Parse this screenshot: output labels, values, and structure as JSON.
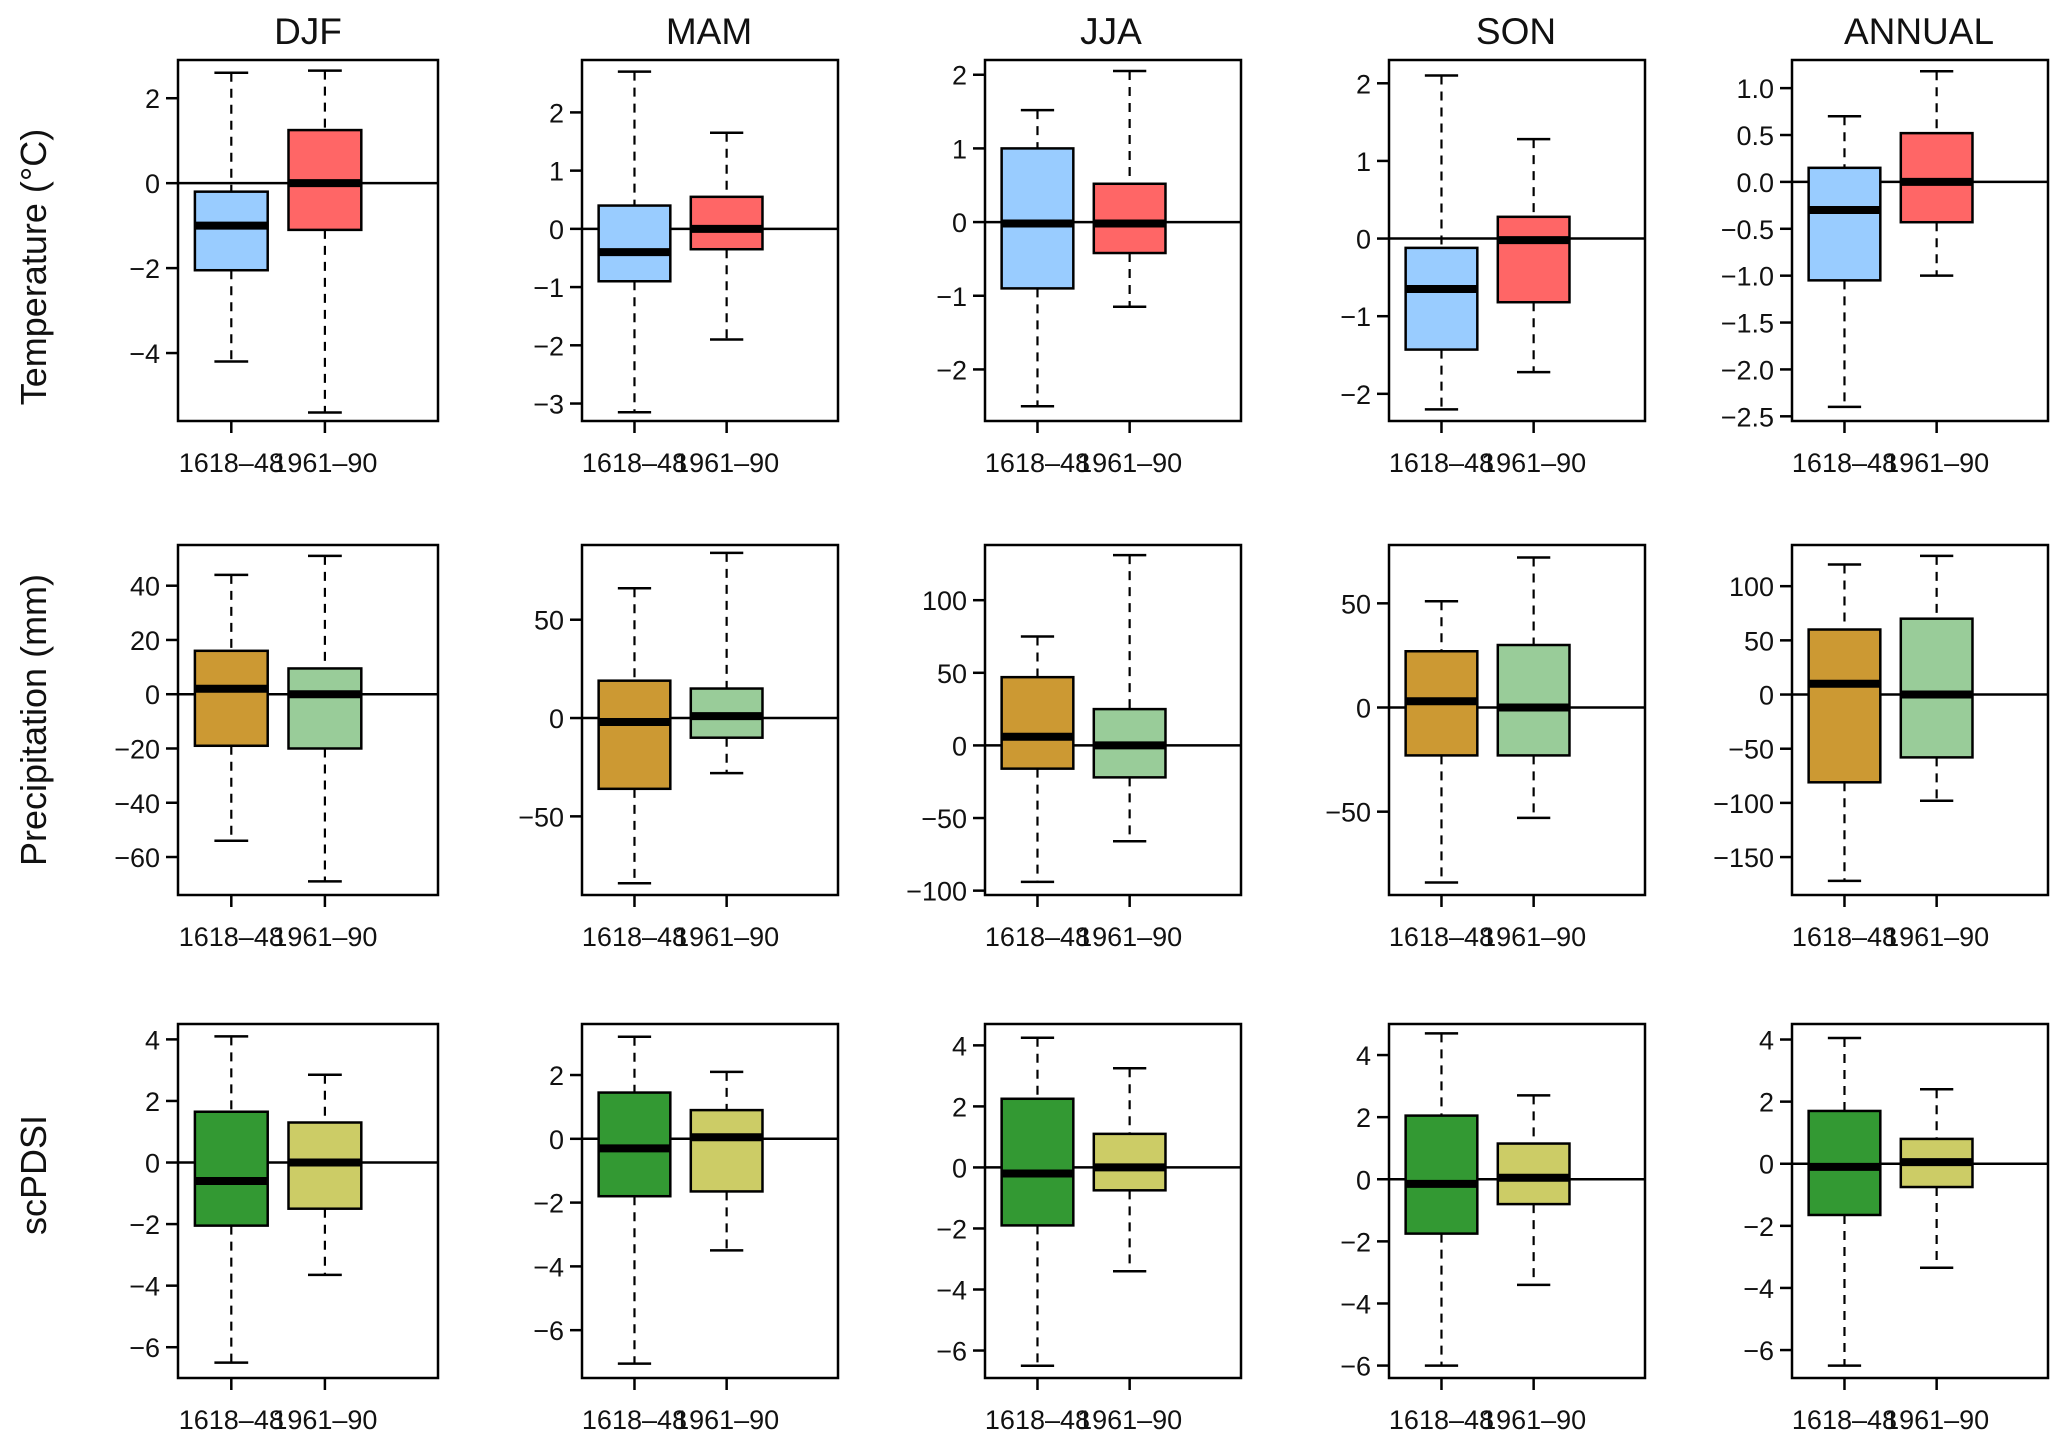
{
  "columns": [
    "DJF",
    "MAM",
    "JJA",
    "SON",
    "ANNUAL"
  ],
  "rows": [
    "Temperature (°C)",
    "Precipitation (mm)",
    "scPDSI"
  ],
  "colors": {
    "temp_1618": "#99CCFF",
    "temp_1961": "#FF6666",
    "precip_1618": "#CC9933",
    "precip_1961": "#99CC99",
    "pdsi_1618": "#339933",
    "pdsi_1961": "#CCCC66"
  },
  "chart_data": [
    {
      "type": "box",
      "row": "Temperature (°C)",
      "column": "DJF",
      "categories": [
        "1618–48",
        "1961–90"
      ],
      "ylim": [
        -5.6,
        2.9
      ],
      "yticks": [
        2,
        0,
        -2,
        -4
      ],
      "tick_labels": [
        "2",
        "0",
        "−2",
        "−4"
      ],
      "reference_line": 0,
      "boxes": [
        {
          "category": "1618–48",
          "whisker_low": -4.2,
          "q1": -2.05,
          "median": -1.0,
          "q3": -0.2,
          "whisker_high": 2.6,
          "color": "#99CCFF"
        },
        {
          "category": "1961–90",
          "whisker_low": -5.4,
          "q1": -1.1,
          "median": 0.0,
          "q3": 1.25,
          "whisker_high": 2.65,
          "color": "#FF6666"
        }
      ]
    },
    {
      "type": "box",
      "row": "Temperature (°C)",
      "column": "MAM",
      "categories": [
        "1618–48",
        "1961–90"
      ],
      "ylim": [
        -3.3,
        2.9
      ],
      "yticks": [
        2,
        1,
        0,
        -1,
        -2,
        -3
      ],
      "tick_labels": [
        "2",
        "1",
        "0",
        "−1",
        "−2",
        "−3"
      ],
      "reference_line": 0,
      "boxes": [
        {
          "category": "1618–48",
          "whisker_low": -3.15,
          "q1": -0.9,
          "median": -0.4,
          "q3": 0.4,
          "whisker_high": 2.7,
          "color": "#99CCFF"
        },
        {
          "category": "1961–90",
          "whisker_low": -1.9,
          "q1": -0.35,
          "median": 0.0,
          "q3": 0.55,
          "whisker_high": 1.65,
          "color": "#FF6666"
        }
      ]
    },
    {
      "type": "box",
      "row": "Temperature (°C)",
      "column": "JJA",
      "categories": [
        "1618–48",
        "1961–90"
      ],
      "ylim": [
        -2.7,
        2.2
      ],
      "yticks": [
        2,
        1,
        0,
        -1,
        -2
      ],
      "tick_labels": [
        "2",
        "1",
        "0",
        "−1",
        "−2"
      ],
      "reference_line": 0,
      "boxes": [
        {
          "category": "1618–48",
          "whisker_low": -2.5,
          "q1": -0.9,
          "median": -0.02,
          "q3": 1.0,
          "whisker_high": 1.52,
          "color": "#99CCFF"
        },
        {
          "category": "1961–90",
          "whisker_low": -1.15,
          "q1": -0.42,
          "median": -0.02,
          "q3": 0.52,
          "whisker_high": 2.05,
          "color": "#FF6666"
        }
      ]
    },
    {
      "type": "box",
      "row": "Temperature (°C)",
      "column": "SON",
      "categories": [
        "1618–48",
        "1961–90"
      ],
      "ylim": [
        -2.35,
        2.3
      ],
      "yticks": [
        2,
        1,
        0,
        -1,
        -2
      ],
      "tick_labels": [
        "2",
        "1",
        "0",
        "−1",
        "−2"
      ],
      "reference_line": 0,
      "boxes": [
        {
          "category": "1618–48",
          "whisker_low": -2.2,
          "q1": -1.43,
          "median": -0.65,
          "q3": -0.12,
          "whisker_high": 2.1,
          "color": "#99CCFF"
        },
        {
          "category": "1961–90",
          "whisker_low": -1.72,
          "q1": -0.82,
          "median": -0.02,
          "q3": 0.28,
          "whisker_high": 1.28,
          "color": "#FF6666"
        }
      ]
    },
    {
      "type": "box",
      "row": "Temperature (°C)",
      "column": "ANNUAL",
      "categories": [
        "1618–48",
        "1961–90"
      ],
      "ylim": [
        -2.55,
        1.3
      ],
      "yticks": [
        1.0,
        0.5,
        0.0,
        -0.5,
        -1.0,
        -1.5,
        -2.0,
        -2.5
      ],
      "tick_labels": [
        "1.0",
        "0.5",
        "0.0",
        "−0.5",
        "−1.0",
        "−1.5",
        "−2.0",
        "−2.5"
      ],
      "reference_line": 0,
      "boxes": [
        {
          "category": "1618–48",
          "whisker_low": -2.4,
          "q1": -1.05,
          "median": -0.3,
          "q3": 0.15,
          "whisker_high": 0.7,
          "color": "#99CCFF"
        },
        {
          "category": "1961–90",
          "whisker_low": -1.0,
          "q1": -0.43,
          "median": 0.0,
          "q3": 0.52,
          "whisker_high": 1.18,
          "color": "#FF6666"
        }
      ]
    },
    {
      "type": "box",
      "row": "Precipitation (mm)",
      "column": "DJF",
      "categories": [
        "1618–48",
        "1961–90"
      ],
      "ylim": [
        -74,
        55
      ],
      "yticks": [
        40,
        20,
        0,
        -20,
        -40,
        -60
      ],
      "tick_labels": [
        "40",
        "20",
        "0",
        "−20",
        "−40",
        "−60"
      ],
      "reference_line": 0,
      "boxes": [
        {
          "category": "1618–48",
          "whisker_low": -54,
          "q1": -19,
          "median": 2,
          "q3": 16,
          "whisker_high": 44,
          "color": "#CC9933"
        },
        {
          "category": "1961–90",
          "whisker_low": -69,
          "q1": -20,
          "median": 0,
          "q3": 9.5,
          "whisker_high": 51,
          "color": "#99CC99"
        }
      ]
    },
    {
      "type": "box",
      "row": "Precipitation (mm)",
      "column": "MAM",
      "categories": [
        "1618–48",
        "1961–90"
      ],
      "ylim": [
        -90,
        88
      ],
      "yticks": [
        50,
        0,
        -50
      ],
      "tick_labels": [
        "50",
        "0",
        "−50"
      ],
      "reference_line": 0,
      "boxes": [
        {
          "category": "1618–48",
          "whisker_low": -84,
          "q1": -36,
          "median": -2,
          "q3": 19,
          "whisker_high": 66,
          "color": "#CC9933"
        },
        {
          "category": "1961–90",
          "whisker_low": -28,
          "q1": -10,
          "median": 1,
          "q3": 15,
          "whisker_high": 84,
          "color": "#99CC99"
        }
      ]
    },
    {
      "type": "box",
      "row": "Precipitation (mm)",
      "column": "JJA",
      "categories": [
        "1618–48",
        "1961–90"
      ],
      "ylim": [
        -103,
        138
      ],
      "yticks": [
        100,
        50,
        0,
        -50,
        -100
      ],
      "tick_labels": [
        "100",
        "50",
        "0",
        "−50",
        "−100"
      ],
      "reference_line": 0,
      "boxes": [
        {
          "category": "1618–48",
          "whisker_low": -94,
          "q1": -16,
          "median": 6,
          "q3": 47,
          "whisker_high": 75,
          "color": "#CC9933"
        },
        {
          "category": "1961–90",
          "whisker_low": -66,
          "q1": -22,
          "median": 0,
          "q3": 25,
          "whisker_high": 131,
          "color": "#99CC99"
        }
      ]
    },
    {
      "type": "box",
      "row": "Precipitation (mm)",
      "column": "SON",
      "categories": [
        "1618–48",
        "1961–90"
      ],
      "ylim": [
        -90,
        78
      ],
      "yticks": [
        50,
        0,
        -50
      ],
      "tick_labels": [
        "50",
        "0",
        "−50"
      ],
      "reference_line": 0,
      "boxes": [
        {
          "category": "1618–48",
          "whisker_low": -84,
          "q1": -23,
          "median": 3,
          "q3": 27,
          "whisker_high": 51,
          "color": "#CC9933"
        },
        {
          "category": "1961–90",
          "whisker_low": -53,
          "q1": -23,
          "median": 0,
          "q3": 30,
          "whisker_high": 72,
          "color": "#99CC99"
        }
      ]
    },
    {
      "type": "box",
      "row": "Precipitation (mm)",
      "column": "ANNUAL",
      "categories": [
        "1618–48",
        "1961–90"
      ],
      "ylim": [
        -185,
        138
      ],
      "yticks": [
        100,
        50,
        0,
        -50,
        -100,
        -150
      ],
      "tick_labels": [
        "100",
        "50",
        "0",
        "−50",
        "−100",
        "−150"
      ],
      "reference_line": 0,
      "boxes": [
        {
          "category": "1618–48",
          "whisker_low": -172,
          "q1": -81,
          "median": 10,
          "q3": 60,
          "whisker_high": 120,
          "color": "#CC9933"
        },
        {
          "category": "1961–90",
          "whisker_low": -98,
          "q1": -58,
          "median": 0,
          "q3": 70,
          "whisker_high": 128,
          "color": "#99CC99"
        }
      ]
    },
    {
      "type": "box",
      "row": "scPDSI",
      "column": "DJF",
      "categories": [
        "1618–48",
        "1961–90"
      ],
      "ylim": [
        -7.0,
        4.5
      ],
      "yticks": [
        4,
        2,
        0,
        -2,
        -4,
        -6
      ],
      "tick_labels": [
        "4",
        "2",
        "0",
        "−2",
        "−4",
        "−6"
      ],
      "reference_line": 0,
      "boxes": [
        {
          "category": "1618–48",
          "whisker_low": -6.5,
          "q1": -2.05,
          "median": -0.6,
          "q3": 1.65,
          "whisker_high": 4.1,
          "color": "#339933"
        },
        {
          "category": "1961–90",
          "whisker_low": -3.65,
          "q1": -1.5,
          "median": 0.0,
          "q3": 1.3,
          "whisker_high": 2.85,
          "color": "#CCCC66"
        }
      ]
    },
    {
      "type": "box",
      "row": "scPDSI",
      "column": "MAM",
      "categories": [
        "1618–48",
        "1961–90"
      ],
      "ylim": [
        -7.5,
        3.6
      ],
      "yticks": [
        2,
        0,
        -2,
        -4,
        -6
      ],
      "tick_labels": [
        "2",
        "0",
        "−2",
        "−4",
        "−6"
      ],
      "reference_line": 0,
      "boxes": [
        {
          "category": "1618–48",
          "whisker_low": -7.05,
          "q1": -1.8,
          "median": -0.3,
          "q3": 1.45,
          "whisker_high": 3.2,
          "color": "#339933"
        },
        {
          "category": "1961–90",
          "whisker_low": -3.5,
          "q1": -1.65,
          "median": 0.05,
          "q3": 0.9,
          "whisker_high": 2.1,
          "color": "#CCCC66"
        }
      ]
    },
    {
      "type": "box",
      "row": "scPDSI",
      "column": "JJA",
      "categories": [
        "1618–48",
        "1961–90"
      ],
      "ylim": [
        -6.9,
        4.7
      ],
      "yticks": [
        4,
        2,
        0,
        -2,
        -4,
        -6
      ],
      "tick_labels": [
        "4",
        "2",
        "0",
        "−2",
        "−4",
        "−6"
      ],
      "reference_line": 0,
      "boxes": [
        {
          "category": "1618–48",
          "whisker_low": -6.5,
          "q1": -1.9,
          "median": -0.2,
          "q3": 2.25,
          "whisker_high": 4.25,
          "color": "#339933"
        },
        {
          "category": "1961–90",
          "whisker_low": -3.4,
          "q1": -0.75,
          "median": 0.0,
          "q3": 1.1,
          "whisker_high": 3.25,
          "color": "#CCCC66"
        }
      ]
    },
    {
      "type": "box",
      "row": "scPDSI",
      "column": "SON",
      "categories": [
        "1618–48",
        "1961–90"
      ],
      "ylim": [
        -6.4,
        5.0
      ],
      "yticks": [
        4,
        2,
        0,
        -2,
        -4,
        -6
      ],
      "tick_labels": [
        "4",
        "2",
        "0",
        "−2",
        "−4",
        "−6"
      ],
      "reference_line": 0,
      "boxes": [
        {
          "category": "1618–48",
          "whisker_low": -6.0,
          "q1": -1.75,
          "median": -0.15,
          "q3": 2.05,
          "whisker_high": 4.7,
          "color": "#339933"
        },
        {
          "category": "1961–90",
          "whisker_low": -3.4,
          "q1": -0.8,
          "median": 0.05,
          "q3": 1.15,
          "whisker_high": 2.7,
          "color": "#CCCC66"
        }
      ]
    },
    {
      "type": "box",
      "row": "scPDSI",
      "column": "ANNUAL",
      "categories": [
        "1618–48",
        "1961–90"
      ],
      "ylim": [
        -6.9,
        4.5
      ],
      "yticks": [
        4,
        2,
        0,
        -2,
        -4,
        -6
      ],
      "tick_labels": [
        "4",
        "2",
        "0",
        "−2",
        "−4",
        "−6"
      ],
      "reference_line": 0,
      "boxes": [
        {
          "category": "1618–48",
          "whisker_low": -6.5,
          "q1": -1.65,
          "median": -0.1,
          "q3": 1.7,
          "whisker_high": 4.05,
          "color": "#339933"
        },
        {
          "category": "1961–90",
          "whisker_low": -3.35,
          "q1": -0.75,
          "median": 0.05,
          "q3": 0.8,
          "whisker_high": 2.4,
          "color": "#CCCC66"
        }
      ]
    }
  ]
}
